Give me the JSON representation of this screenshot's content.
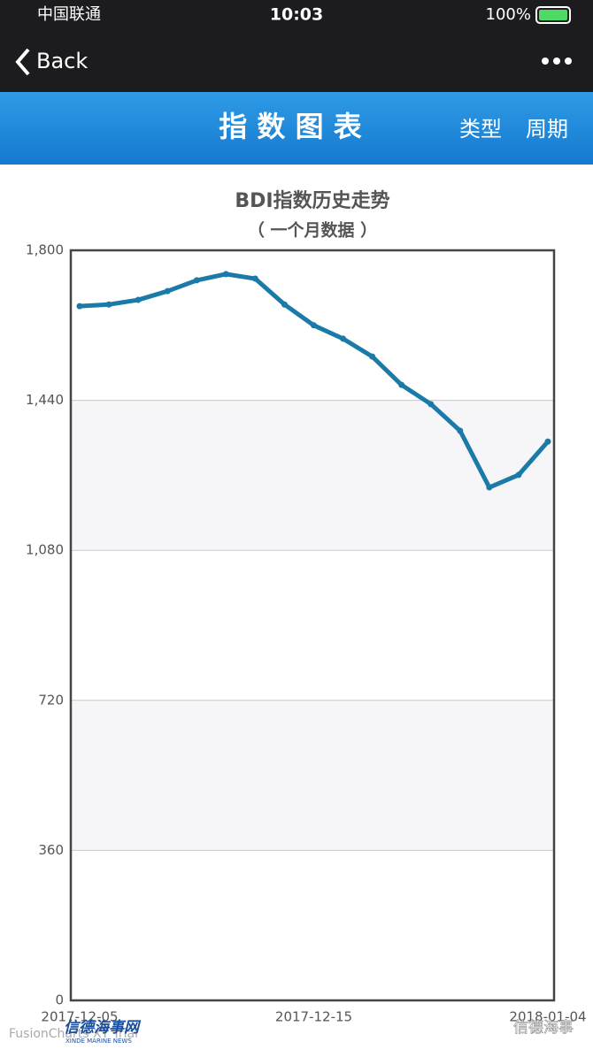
{
  "status_bar": {
    "carrier": "中国联通",
    "time": "10:03",
    "battery": "100%"
  },
  "nav": {
    "back": "Back"
  },
  "header": {
    "title": "指 数 图 表",
    "type_button": "类型",
    "period_button": "周期"
  },
  "chart_data": {
    "type": "line",
    "title": "BDI指数历史走势",
    "subtitle": "（ 一个月数据 ）",
    "categories": [
      "2017-12-05",
      null,
      null,
      null,
      null,
      null,
      null,
      null,
      "2017-12-15",
      null,
      null,
      null,
      null,
      null,
      null,
      null,
      "2018-01-04"
    ],
    "series": [
      {
        "name": "BDI",
        "color": "#1a7aa8",
        "values": [
          1666,
          1670,
          1681,
          1702,
          1728,
          1743,
          1732,
          1670,
          1620,
          1588,
          1545,
          1477,
          1431,
          1367,
          1231,
          1261,
          1341
        ]
      }
    ],
    "ylim": [
      0,
      1800
    ],
    "yticks": [
      0,
      360,
      720,
      {
        "value": 1080,
        "label": "1,080"
      },
      {
        "value": 1440,
        "label": "1,440"
      },
      {
        "value": 1800,
        "label": "1,800"
      }
    ],
    "grid": true
  },
  "watermarks": {
    "trial": "FusionCharts XT Trial",
    "logo_cn": "信德海事网",
    "logo_en": "XINDE MARINE NEWS",
    "account": "信德海事"
  }
}
